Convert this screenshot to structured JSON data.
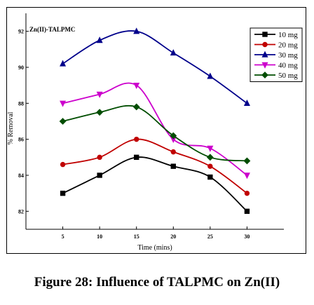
{
  "caption": "Figure 28: Influence of TALPMC on Zn(II)",
  "chart_data": {
    "type": "line",
    "title": "Zn(II)-TALPMC",
    "xlabel": "Time (mins)",
    "ylabel": "% Removal",
    "x": [
      5,
      10,
      15,
      20,
      25,
      30
    ],
    "xlim": [
      0,
      35
    ],
    "ylim": [
      81,
      93
    ],
    "yticks": [
      82,
      84,
      86,
      88,
      90,
      92
    ],
    "grid": false,
    "legend_position": "top-right",
    "series": [
      {
        "name": "10 mg",
        "color": "#000000",
        "marker": "square",
        "values": [
          83.0,
          84.0,
          85.0,
          84.5,
          83.9,
          82.0
        ]
      },
      {
        "name": "20 mg",
        "color": "#c00000",
        "marker": "circle",
        "values": [
          84.6,
          85.0,
          86.0,
          85.3,
          84.5,
          83.0
        ]
      },
      {
        "name": "30 mg",
        "color": "#00008b",
        "marker": "triangle",
        "values": [
          90.2,
          91.5,
          92.0,
          90.8,
          89.5,
          88.0
        ]
      },
      {
        "name": "40 mg",
        "color": "#cc00cc",
        "marker": "triangle-down",
        "values": [
          88.0,
          88.5,
          89.0,
          86.0,
          85.5,
          84.0
        ]
      },
      {
        "name": "50 mg",
        "color": "#004d00",
        "marker": "diamond",
        "values": [
          87.0,
          87.5,
          87.8,
          86.2,
          85.0,
          84.8
        ]
      }
    ]
  }
}
